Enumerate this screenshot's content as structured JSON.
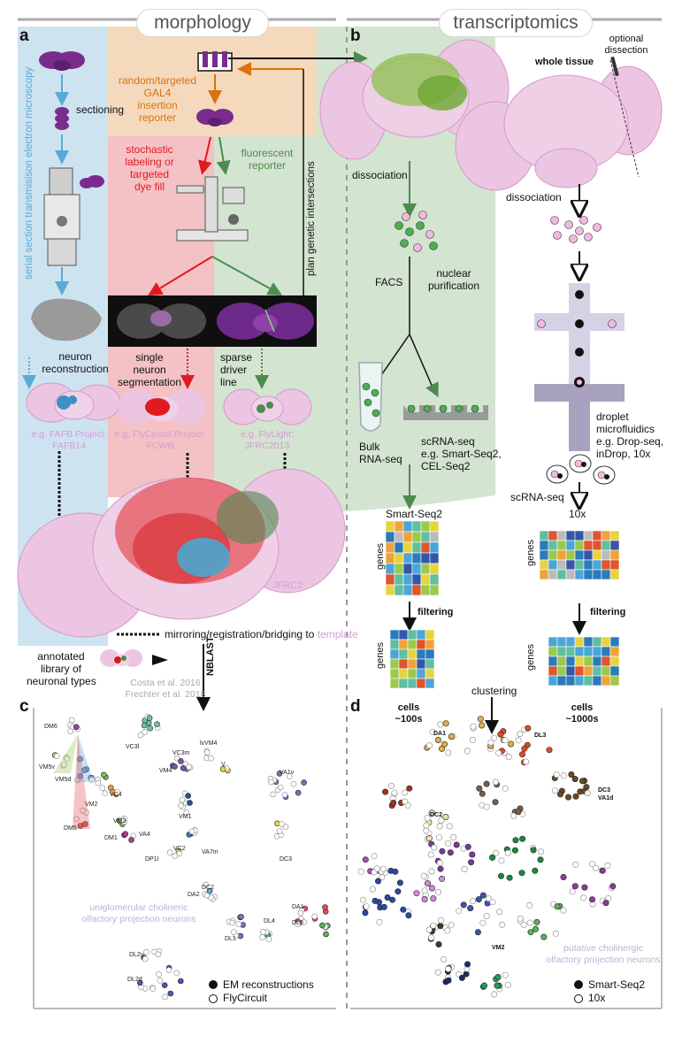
{
  "headers": {
    "morphology": "morphology",
    "transcriptomics": "transcriptomics"
  },
  "panels": {
    "a": "a",
    "b": "b",
    "c": "c",
    "d": "d"
  },
  "morph": {
    "em_vertical": "serial section transmisison electron microscopy",
    "sectioning": "sectioning",
    "gal4": [
      "random/targeted",
      "GAL4",
      "insertion",
      "reporter"
    ],
    "stochastic": [
      "stochastic",
      "labeling or",
      "targeted",
      "dye fill"
    ],
    "fluorescent": [
      "fluorescent",
      "reporter"
    ],
    "plan_vertical": "plan genetic intersections",
    "neuron_recon": [
      "neuron",
      "reconstruction"
    ],
    "single_neuron": [
      "single",
      "neuron",
      "segmentation"
    ],
    "sparse_driver": [
      "sparse",
      "driver",
      "line"
    ],
    "fafb": [
      "e.g. FAFB Project:",
      "FAFB14"
    ],
    "flycircuit": [
      "e.g. FlyCircuit Project:",
      "FCWB"
    ],
    "flylight": [
      "e.g. FlyLight:",
      "JFRC2013"
    ],
    "jfrc2": "JFRC2",
    "mirroring": "mirroring/registration/bridging to ",
    "template": "template",
    "library": [
      "annotated",
      "library of",
      "neuronal types"
    ],
    "costa": [
      "Costa et al. 2016",
      "Frechter et al. 2018"
    ],
    "nblast": "NBLAST"
  },
  "trans": {
    "optional": [
      "optional",
      "dissection"
    ],
    "whole_tissue": "whole tissue",
    "dissociation_left": "dissociation",
    "dissociation_right": "dissociation",
    "facs": "FACS",
    "nuclear": [
      "nuclear",
      "purification"
    ],
    "bulk": [
      "Bulk",
      "RNA-seq"
    ],
    "scrna_left": [
      "scRNA-seq",
      "e.g. Smart-Seq2,",
      "CEL-Seq2"
    ],
    "droplet": [
      "droplet",
      "microfluidics",
      "e.g. Drop-seq,",
      "inDrop, 10x"
    ],
    "scrna_right": "scRNA-seq",
    "smartseq2": "Smart-Seq2",
    "tenx": "10x",
    "genes": "genes",
    "filtering": "filtering",
    "clustering": "clustering",
    "cells_left": [
      "cells",
      "~100s"
    ],
    "cells_right": [
      "cells",
      "~1000s"
    ]
  },
  "panel_c": {
    "labels": [
      "DM6",
      "VM5v",
      "VM5d",
      "VM2",
      "DM5",
      "VC3l",
      "VC3m",
      "lvVM4",
      "VM4",
      "V",
      "VC4",
      "VM3",
      "VA4",
      "DM1",
      "VM1",
      "VC2",
      "VA7m",
      "DP1l",
      "VA1v",
      "DC3",
      "DC2",
      "DA2",
      "DA1",
      "DL3",
      "DL4",
      "DL1",
      "DL2v",
      "DL2d"
    ],
    "caption": [
      "uniglomerular cholineric",
      "olfactory projection neurons"
    ],
    "legend": [
      "EM reconstructions",
      "FlyCircuit"
    ]
  },
  "panel_d": {
    "labels": [
      "DA1",
      "DL3",
      "DC3",
      "VA1d",
      "DC2",
      "VM2"
    ],
    "caption": [
      "putative cholinergic",
      "olfactory projection neurons"
    ],
    "legend": [
      "Smart-Seq2",
      "10x"
    ]
  },
  "colors": {
    "em_panel": "#cde3f0",
    "gal4_panel": "#f4d9bd",
    "red_panel": "#f4c2c4",
    "green_panel": "#d3e4d0",
    "brain_pink": "#e9b9d9",
    "em_arrow": "#5aa9d6",
    "gal4_arrow": "#d9730e",
    "red_arrow": "#e11a22",
    "green_arrow": "#4f8a4f"
  }
}
